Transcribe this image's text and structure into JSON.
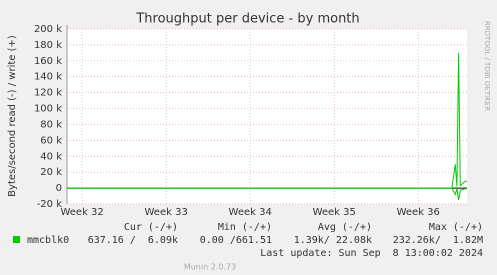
{
  "chart_data": {
    "type": "line",
    "title": "Throughput per device - by month",
    "y_label": "Bytes/second read (-) / write (+)",
    "side_text": "RRDTOOL / TOBI OETIKER",
    "x": [
      31.82,
      36.4,
      36.44,
      36.46,
      36.48,
      36.5,
      36.52,
      36.55,
      36.58
    ],
    "series": [
      {
        "name": "mmcblk0",
        "color": "#00cc00",
        "values": [
          0,
          0,
          30000,
          2000,
          170000,
          3000,
          5000,
          8000,
          9000
        ]
      },
      {
        "color": "#00cc00",
        "values": [
          0,
          0,
          -8000,
          -1000,
          -15000,
          -3000,
          -2000,
          -1000,
          -500
        ]
      }
    ],
    "xlim": [
      31.82,
      36.58
    ],
    "xticks": [
      {
        "value": 32,
        "label": "Week 32"
      },
      {
        "value": 33,
        "label": "Week 33"
      },
      {
        "value": 34,
        "label": "Week 34"
      },
      {
        "value": 35,
        "label": "Week 35"
      },
      {
        "value": 36,
        "label": "Week 36"
      }
    ],
    "ylim": [
      -20000,
      200000
    ],
    "yticks": [
      {
        "value": -20000,
        "label": "-20 k"
      },
      0,
      {
        "value": 20000,
        "label": "20 k"
      },
      {
        "value": 40000,
        "label": "40 k"
      },
      {
        "value": 60000,
        "label": "60 k"
      },
      {
        "value": 80000,
        "label": "80 k"
      },
      {
        "value": 100000,
        "label": "100 k"
      },
      {
        "value": 120000,
        "label": "120 k"
      },
      {
        "value": 140000,
        "label": "140 k"
      },
      {
        "value": 160000,
        "label": "160 k"
      },
      {
        "value": 180000,
        "label": "180 k"
      },
      {
        "value": 200000,
        "label": "200 k"
      }
    ],
    "grid": true,
    "stats": {
      "headers": [
        "Cur (-/+)",
        "Min (-/+)",
        "Avg (-/+)",
        "Max (-/+)"
      ],
      "values": [
        "637.16 /  6.09k",
        "0.00 /661.51",
        "1.39k/ 22.08k",
        "232.26k/  1.82M"
      ]
    },
    "last_update": "Last update: Sun Sep  8 13:00:02 2024",
    "footer": "Munin 2.0.73"
  }
}
